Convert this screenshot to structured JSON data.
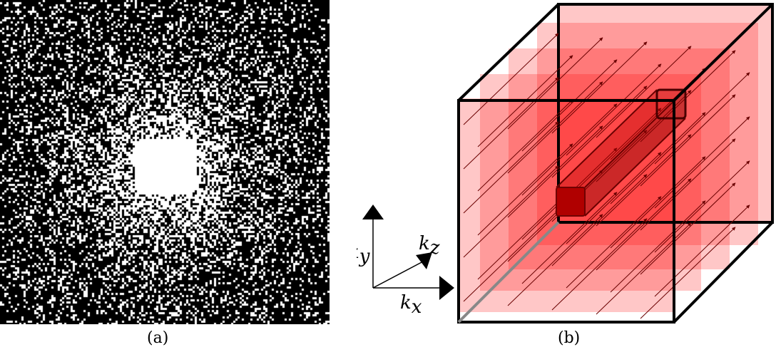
{
  "panel_a": {
    "caption": "(a)",
    "background_color": "#000000",
    "point_color": "#ffffff"
  },
  "panel_b": {
    "caption": "(b)",
    "axes": {
      "x_base": "k",
      "x_sub": "x",
      "y_base": "k",
      "y_sub": "y",
      "z_base": "k",
      "z_sub": "z"
    },
    "colors": {
      "layer": "#ff0000",
      "beam": "#b40000",
      "edge": "#000000",
      "arrow": "#6a0000"
    }
  }
}
